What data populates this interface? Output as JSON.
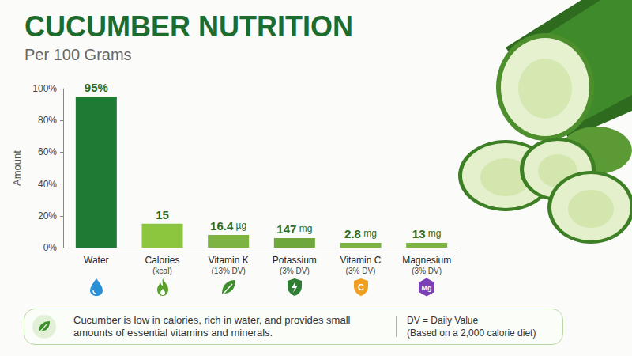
{
  "chart_data": {
    "type": "bar",
    "title": "CUCUMBER NUTRITION",
    "subtitle": "Per 100 Grams",
    "y_label": "Amount",
    "categories": [
      "Water",
      "Calories",
      "Vitamin K",
      "Potassium",
      "Vitamin C",
      "Magnesium"
    ],
    "category_notes": [
      null,
      "(kcal)",
      "(13% DV)",
      "(3% DV)",
      "(3% DV)",
      "(3% DV)"
    ],
    "values": [
      95,
      15,
      8,
      6,
      3,
      3
    ],
    "annotations": [
      "95%",
      "15",
      "16.4 µg",
      "147 mg",
      "2.8 mg",
      "13 mg"
    ],
    "icon_labels": [
      null,
      null,
      null,
      null,
      "C",
      "Mg"
    ],
    "colors": [
      "#1f7a34",
      "#8cc63f",
      "#7cb342",
      "#6ea83c",
      "#7cb342",
      "#7cb342"
    ],
    "ylim": [
      0,
      100
    ],
    "yticks": [
      {
        "value": 0,
        "label": "0%"
      },
      {
        "value": 20,
        "label": "20%"
      },
      {
        "value": 40,
        "label": "40%"
      },
      {
        "value": 60,
        "label": "60%"
      },
      {
        "value": 80,
        "label": "80%"
      },
      {
        "value": 100,
        "label": "100%"
      }
    ],
    "grid": false,
    "footnote": "Cucumber is low in calories, rich in water, and provides small amounts of essential vitamins and minerals.",
    "dv_note": [
      "DV = Daily Value",
      "(Based on a 2,000 calorie diet)"
    ]
  }
}
